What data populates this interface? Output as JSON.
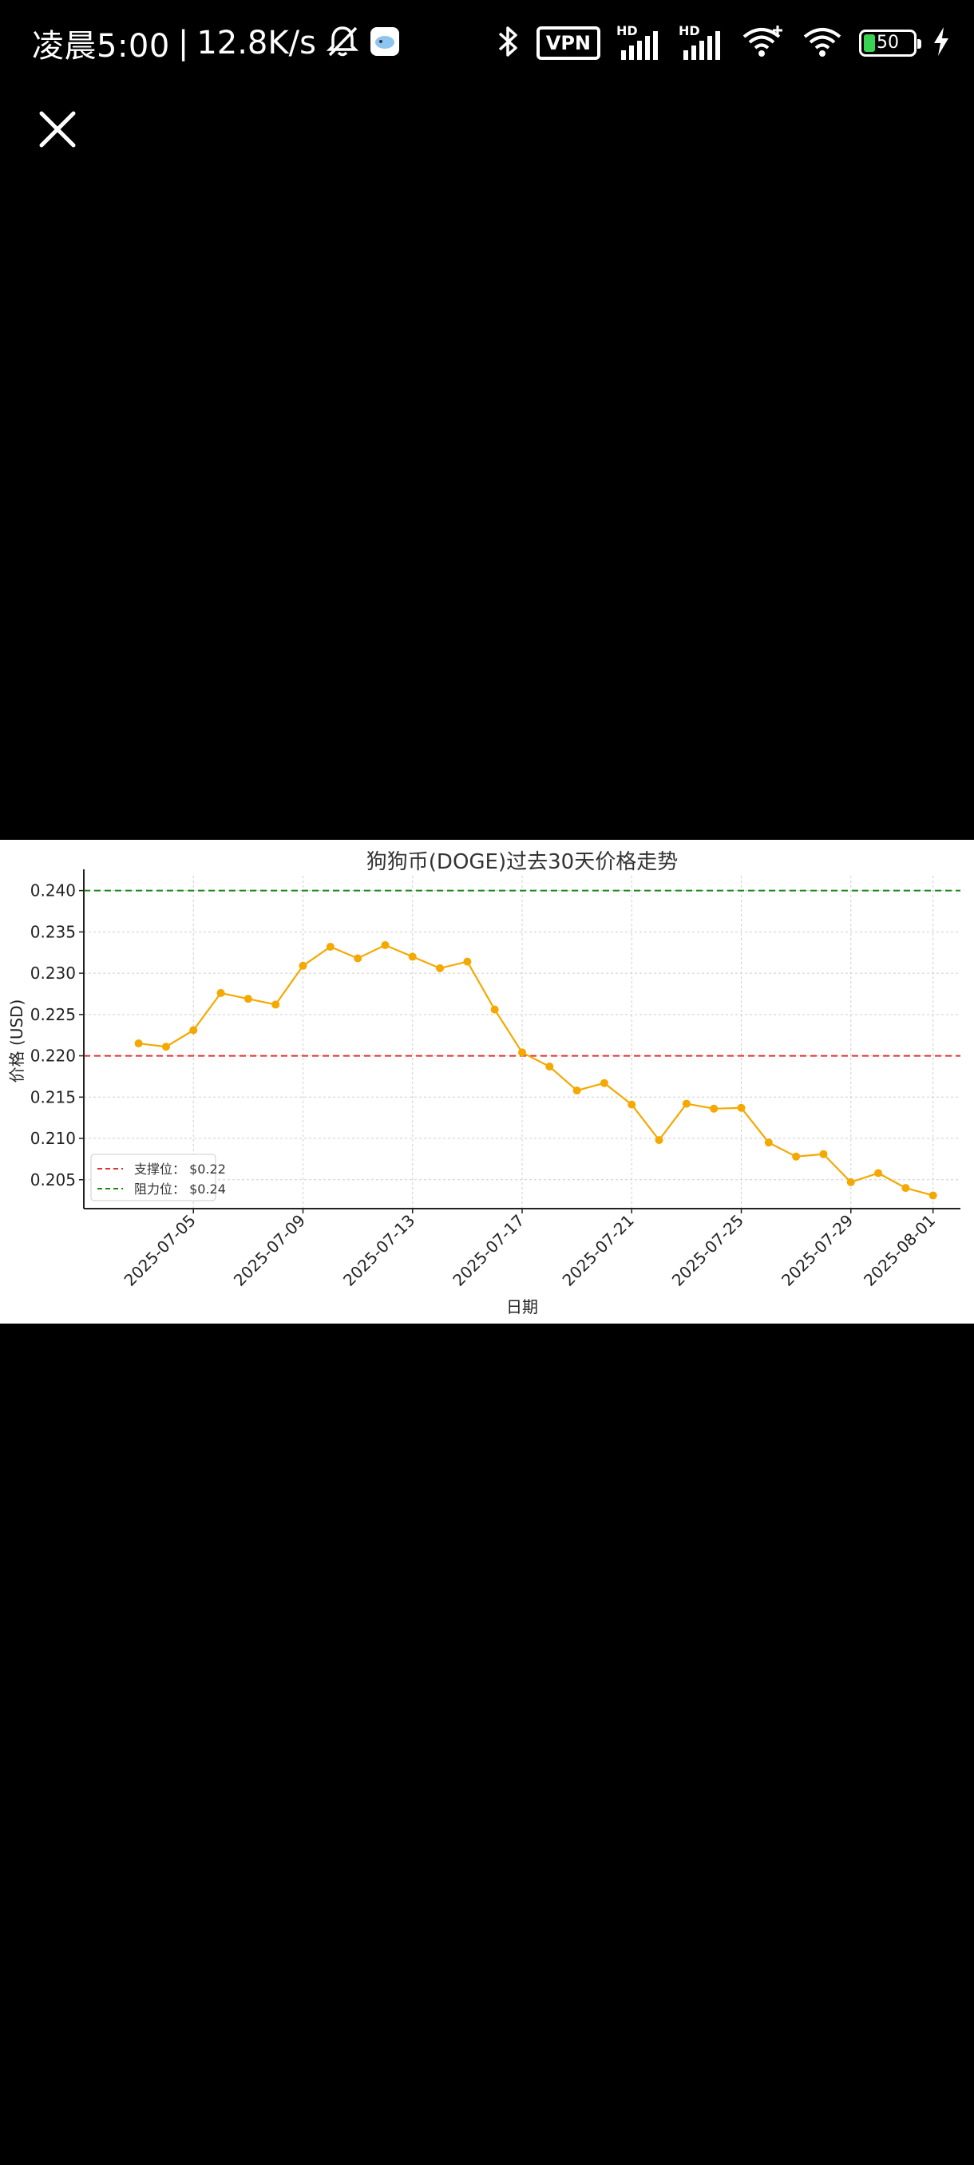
{
  "status_bar": {
    "time": "凌晨5:00",
    "separator": "|",
    "net_speed": "12.8K/s",
    "vpn_label": "VPN",
    "hd1": "HD",
    "hd2": "HD",
    "battery_level": "50",
    "icons": [
      "mute-bell-icon",
      "app-notification-icon",
      "bluetooth-icon",
      "vpn-icon",
      "signal-icon",
      "signal-icon",
      "wifi-plus-icon",
      "wifi-icon",
      "battery-icon",
      "charging-icon"
    ],
    "battery_color": "#39d353"
  },
  "viewer": {
    "close_icon": "close-icon"
  },
  "chart_data": {
    "type": "line",
    "title": "狗狗币(DOGE)过去30天价格走势",
    "xlabel": "日期",
    "ylabel": "价格 (USD)",
    "x": [
      "2025-07-03",
      "2025-07-04",
      "2025-07-05",
      "2025-07-06",
      "2025-07-07",
      "2025-07-08",
      "2025-07-09",
      "2025-07-10",
      "2025-07-11",
      "2025-07-12",
      "2025-07-13",
      "2025-07-14",
      "2025-07-15",
      "2025-07-16",
      "2025-07-17",
      "2025-07-18",
      "2025-07-19",
      "2025-07-20",
      "2025-07-21",
      "2025-07-22",
      "2025-07-23",
      "2025-07-24",
      "2025-07-25",
      "2025-07-26",
      "2025-07-27",
      "2025-07-28",
      "2025-07-29",
      "2025-07-30",
      "2025-07-31",
      "2025-08-01"
    ],
    "series": [
      {
        "values": [
          0.2215,
          0.2211,
          0.2231,
          0.2276,
          0.2269,
          0.2262,
          0.2309,
          0.2332,
          0.2318,
          0.2334,
          0.232,
          0.2306,
          0.2314,
          0.2256,
          0.2204,
          0.2187,
          0.2158,
          0.2167,
          0.2141,
          0.2098,
          0.2142,
          0.2136,
          0.2137,
          0.2095,
          0.2078,
          0.2081,
          0.2047,
          0.2058,
          0.204,
          0.2031
        ],
        "color": "#f5a800"
      }
    ],
    "reference_lines": [
      {
        "label": "支撑位： $0.22",
        "value": 0.22,
        "color": "#e03131",
        "style": "dashed"
      },
      {
        "label": "阻力位： $0.24",
        "value": 0.24,
        "color": "#1e8a1e",
        "style": "dashed"
      }
    ],
    "xticks": [
      "2025-07-05",
      "2025-07-09",
      "2025-07-13",
      "2025-07-17",
      "2025-07-21",
      "2025-07-25",
      "2025-07-29",
      "2025-08-01"
    ],
    "yticks": [
      "0.205",
      "0.210",
      "0.215",
      "0.220",
      "0.225",
      "0.230",
      "0.235",
      "0.240"
    ],
    "ylim": [
      0.2015,
      0.2418
    ],
    "xlim": [
      "2025-07-01",
      "2025-08-02"
    ],
    "grid": true,
    "legend_position": "lower-left"
  }
}
